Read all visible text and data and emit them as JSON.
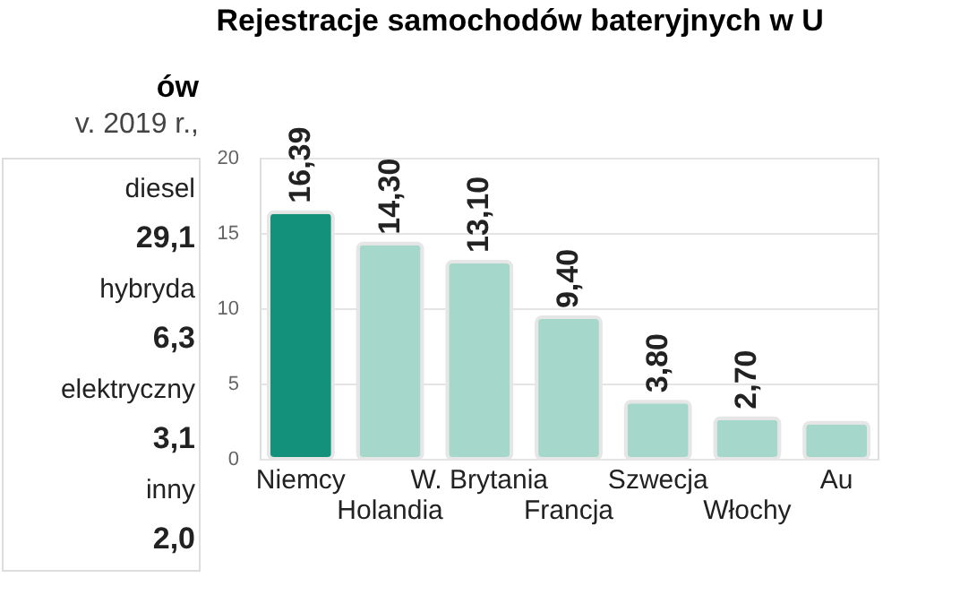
{
  "chart_data": [
    {
      "type": "other",
      "title": "ów",
      "subtitle": "v. 2019 r.,",
      "categories": [
        "diesel",
        "hybryda",
        "elektryczny",
        "inny"
      ],
      "values": [
        29.1,
        6.3,
        3.1,
        2.0
      ],
      "value_labels": [
        "29,1",
        "6,3",
        "3,1",
        "2,0"
      ]
    },
    {
      "type": "bar",
      "title": "Rejestracje samochodów bateryjnych w U",
      "categories": [
        "Niemcy",
        "Holandia",
        "W. Brytania",
        "Francja",
        "Szwecja",
        "Włochy",
        "Au"
      ],
      "values": [
        16.39,
        14.3,
        13.1,
        9.4,
        3.8,
        2.7,
        2.4
      ],
      "colors": [
        "#13917a",
        "#a5d8cb",
        "#a5d8cb",
        "#a5d8cb",
        "#a5d8cb",
        "#a5d8cb",
        "#a5d8cb"
      ],
      "value_labels": [
        "16,39",
        "14,30",
        "13,10",
        "9,40",
        "3,80",
        "2,70",
        null
      ],
      "ylim": [
        0,
        20
      ],
      "yticks": [
        0,
        5,
        10,
        15,
        20
      ],
      "grid": "y"
    }
  ]
}
